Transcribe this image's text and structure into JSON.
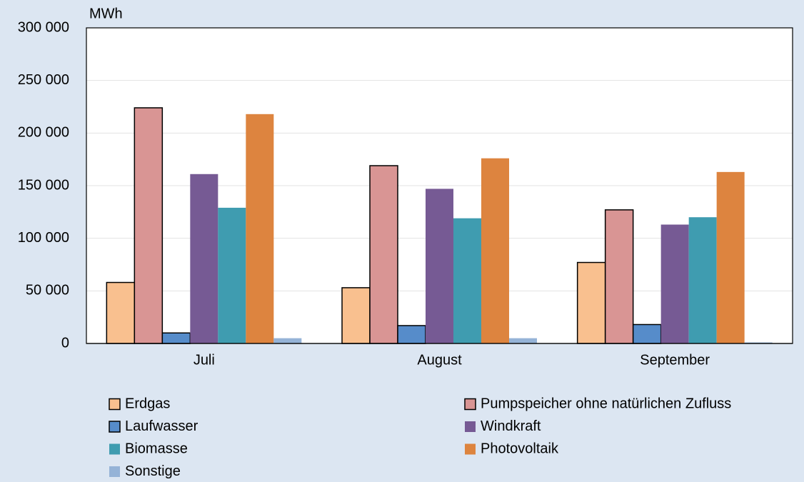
{
  "chart_data": {
    "type": "bar",
    "y_label": "MWh",
    "categories": [
      "Juli",
      "August",
      "September"
    ],
    "series": [
      {
        "name": "Erdgas",
        "color": "#f9c08f",
        "border": true,
        "values": [
          58000,
          53000,
          77000
        ]
      },
      {
        "name": "Pumpspeicher ohne natürlichen Zufluss",
        "color": "#d99594",
        "border": true,
        "values": [
          224000,
          169000,
          127000
        ]
      },
      {
        "name": "Laufwasser",
        "color": "#568cca",
        "border": true,
        "values": [
          10000,
          17000,
          18000
        ]
      },
      {
        "name": "Windkraft",
        "color": "#765a94",
        "border": false,
        "values": [
          161000,
          147000,
          113000
        ]
      },
      {
        "name": "Biomasse",
        "color": "#3f9cb0",
        "border": false,
        "values": [
          129000,
          119000,
          120000
        ]
      },
      {
        "name": "Photovoltaik",
        "color": "#dd843f",
        "border": false,
        "values": [
          218000,
          176000,
          163000
        ]
      },
      {
        "name": "Sonstige",
        "color": "#95b3d7",
        "border": false,
        "values": [
          5000,
          5000,
          1000
        ]
      }
    ],
    "ylim": [
      0,
      300000
    ],
    "yticks": [
      0,
      {
        "value": 50000,
        "label": "50 000"
      },
      {
        "value": 100000,
        "label": "100 000"
      },
      {
        "value": 150000,
        "label": "150 000"
      },
      {
        "value": 200000,
        "label": "200 000"
      },
      {
        "value": 250000,
        "label": "250 000"
      },
      {
        "value": 300000,
        "label": "300 000"
      }
    ],
    "grid": true
  }
}
